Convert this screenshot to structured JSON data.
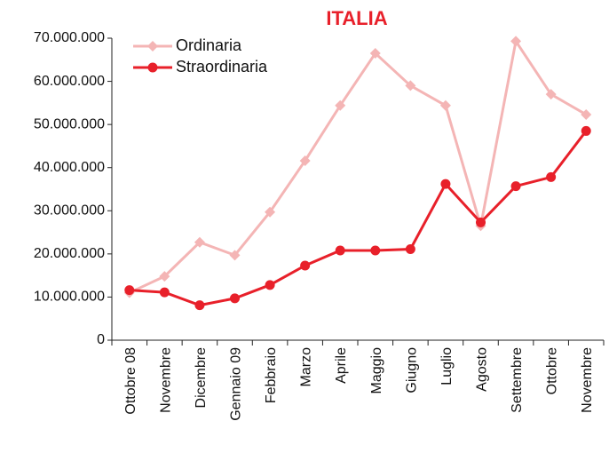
{
  "chart_data": {
    "type": "line",
    "title": "ITALIA",
    "categories": [
      "Ottobre 08",
      "Novembre",
      "Dicembre",
      "Gennaio 09",
      "Febbraio",
      "Marzo",
      "Aprile",
      "Maggio",
      "Giugno",
      "Luglio",
      "Agosto",
      "Settembre",
      "Ottobre",
      "Novembre"
    ],
    "series": [
      {
        "name": "Ordinaria",
        "color": "#f4b5b5",
        "marker": "diamond",
        "values": [
          11000000,
          14800000,
          22700000,
          19700000,
          29700000,
          41600000,
          54400000,
          66500000,
          59000000,
          54400000,
          26500000,
          69300000,
          57000000,
          52300000
        ]
      },
      {
        "name": "Straordinaria",
        "color": "#e8202a",
        "marker": "circle",
        "values": [
          11600000,
          11100000,
          8100000,
          9700000,
          12800000,
          17300000,
          20800000,
          20800000,
          21100000,
          36200000,
          27300000,
          35700000,
          37800000,
          48500000
        ]
      }
    ],
    "ylim": [
      0,
      70000000
    ],
    "yticks": [
      0,
      {
        "value": 10000000,
        "label": "10.000.000"
      },
      {
        "value": 20000000,
        "label": "20.000.000"
      },
      {
        "value": 30000000,
        "label": "30.000.000"
      },
      {
        "value": 40000000,
        "label": "40.000.000"
      },
      {
        "value": 50000000,
        "label": "50.000.000"
      },
      {
        "value": 60000000,
        "label": "60.000.000"
      },
      {
        "value": 70000000,
        "label": "70.000.000"
      }
    ],
    "grid": false,
    "legend": "top-left"
  }
}
